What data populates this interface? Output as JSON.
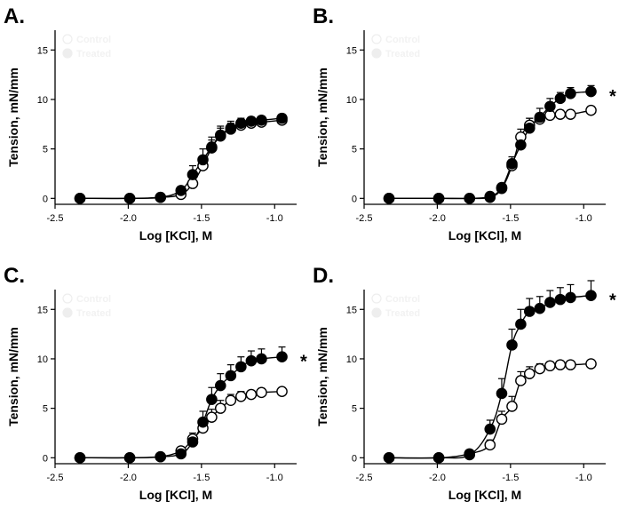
{
  "chart_data": [
    {
      "type": "line",
      "panel": "A.",
      "xlabel": "Log [KCl], M",
      "ylabel": "Tension, mN/mm",
      "xlim": [
        -2.5,
        -0.85
      ],
      "ylim": [
        -0.6,
        17
      ],
      "xticks": [
        -2.5,
        -2.0,
        -1.5,
        -1.0
      ],
      "xtick_labels": [
        "-2.5",
        "-2.0",
        "-1.5",
        "-1.0"
      ],
      "yticks": [
        0,
        5,
        10,
        15
      ],
      "ytick_labels": [
        "0",
        "5",
        "10",
        "15"
      ],
      "legend": [
        "Control",
        "Treated"
      ],
      "significance": "",
      "series": [
        {
          "name": "Control",
          "marker": "open",
          "x": [
            -2.33,
            -1.99,
            -1.78,
            -1.64,
            -1.56,
            -1.49,
            -1.43,
            -1.37,
            -1.3,
            -1.23,
            -1.16,
            -1.09,
            -0.95
          ],
          "y": [
            0,
            0,
            0.1,
            0.4,
            1.5,
            3.3,
            5.1,
            6.3,
            7.0,
            7.4,
            7.6,
            7.7,
            7.9
          ],
          "err": [
            0,
            0,
            0.1,
            0.2,
            0.5,
            0.7,
            0.8,
            0.8,
            0.6,
            0.5,
            0.4,
            0.4,
            0.4
          ]
        },
        {
          "name": "Treated",
          "marker": "filled",
          "x": [
            -2.33,
            -1.99,
            -1.78,
            -1.64,
            -1.56,
            -1.49,
            -1.43,
            -1.37,
            -1.3,
            -1.23,
            -1.16,
            -1.09,
            -0.95
          ],
          "y": [
            0,
            0,
            0.1,
            0.8,
            2.4,
            3.9,
            5.2,
            6.4,
            7.1,
            7.6,
            7.8,
            7.9,
            8.1
          ],
          "err": [
            0,
            0,
            0.2,
            0.4,
            0.9,
            1.1,
            1.0,
            0.9,
            0.7,
            0.5,
            0.4,
            0.4,
            0.4
          ]
        }
      ]
    },
    {
      "type": "line",
      "panel": "B.",
      "xlabel": "Log [KCl], M",
      "ylabel": "Tension, mN/mm",
      "xlim": [
        -2.5,
        -0.85
      ],
      "ylim": [
        -0.6,
        17
      ],
      "xticks": [
        -2.5,
        -2.0,
        -1.5,
        -1.0
      ],
      "xtick_labels": [
        "-2.5",
        "-2.0",
        "-1.5",
        "-1.0"
      ],
      "yticks": [
        0,
        5,
        10,
        15
      ],
      "ytick_labels": [
        "0",
        "5",
        "10",
        "15"
      ],
      "legend": [
        "Control",
        "Treated"
      ],
      "significance": "*",
      "series": [
        {
          "name": "Control",
          "marker": "open",
          "x": [
            -2.33,
            -1.99,
            -1.78,
            -1.64,
            -1.56,
            -1.49,
            -1.43,
            -1.37,
            -1.3,
            -1.23,
            -1.16,
            -1.09,
            -0.95
          ],
          "y": [
            0,
            0,
            0,
            0.1,
            1.0,
            3.3,
            6.2,
            7.4,
            8.0,
            8.4,
            8.5,
            8.5,
            8.9
          ],
          "err": [
            0,
            0,
            0,
            0.1,
            0.3,
            0.6,
            0.8,
            0.7,
            0.6,
            0.5,
            0.4,
            0.4,
            0.4
          ]
        },
        {
          "name": "Treated",
          "marker": "filled",
          "x": [
            -2.33,
            -1.99,
            -1.78,
            -1.64,
            -1.56,
            -1.49,
            -1.43,
            -1.37,
            -1.3,
            -1.23,
            -1.16,
            -1.09,
            -0.95
          ],
          "y": [
            0,
            0,
            0,
            0.2,
            1.1,
            3.5,
            5.4,
            7.1,
            8.2,
            9.3,
            10.1,
            10.6,
            10.8
          ],
          "err": [
            0,
            0,
            0,
            0.1,
            0.4,
            0.7,
            1.0,
            1.0,
            0.9,
            0.8,
            0.6,
            0.6,
            0.6
          ]
        }
      ]
    },
    {
      "type": "line",
      "panel": "C.",
      "xlabel": "Log [KCl], M",
      "ylabel": "Tension, mN/mm",
      "xlim": [
        -2.5,
        -0.85
      ],
      "ylim": [
        -0.6,
        17
      ],
      "xticks": [
        -2.5,
        -2.0,
        -1.5,
        -1.0
      ],
      "xtick_labels": [
        "-2.5",
        "-2.0",
        "-1.5",
        "-1.0"
      ],
      "yticks": [
        0,
        5,
        10,
        15
      ],
      "ytick_labels": [
        "0",
        "5",
        "10",
        "15"
      ],
      "legend": [
        "Control",
        "Treated"
      ],
      "significance": "*",
      "series": [
        {
          "name": "Control",
          "marker": "open",
          "x": [
            -2.33,
            -1.99,
            -1.78,
            -1.64,
            -1.56,
            -1.49,
            -1.43,
            -1.37,
            -1.3,
            -1.23,
            -1.16,
            -1.09,
            -0.95
          ],
          "y": [
            0,
            0,
            0.1,
            0.7,
            1.9,
            3.0,
            4.1,
            5.0,
            5.8,
            6.2,
            6.4,
            6.6,
            6.7
          ],
          "err": [
            0,
            0,
            0.1,
            0.3,
            0.6,
            0.8,
            0.8,
            0.8,
            0.6,
            0.5,
            0.4,
            0.4,
            0.3
          ]
        },
        {
          "name": "Treated",
          "marker": "filled",
          "x": [
            -2.33,
            -1.99,
            -1.78,
            -1.64,
            -1.56,
            -1.49,
            -1.43,
            -1.37,
            -1.3,
            -1.23,
            -1.16,
            -1.09,
            -0.95
          ],
          "y": [
            0,
            0,
            0.1,
            0.4,
            1.6,
            3.6,
            5.9,
            7.3,
            8.3,
            9.2,
            9.8,
            10.0,
            10.2
          ],
          "err": [
            0,
            0,
            0.1,
            0.3,
            0.7,
            1.1,
            1.2,
            1.2,
            1.1,
            1.0,
            1.0,
            1.0,
            1.0
          ]
        }
      ]
    },
    {
      "type": "line",
      "panel": "D.",
      "xlabel": "Log [KCl], M",
      "ylabel": "Tension, mN/mm",
      "xlim": [
        -2.5,
        -0.85
      ],
      "ylim": [
        -0.6,
        17
      ],
      "xticks": [
        -2.5,
        -2.0,
        -1.5,
        -1.0
      ],
      "xtick_labels": [
        "-2.5",
        "-2.0",
        "-1.5",
        "-1.0"
      ],
      "yticks": [
        0,
        5,
        10,
        15
      ],
      "ytick_labels": [
        "0",
        "5",
        "10",
        "15"
      ],
      "legend": [
        "Control",
        "Treated"
      ],
      "significance": "*",
      "series": [
        {
          "name": "Control",
          "marker": "open",
          "x": [
            -2.33,
            -1.99,
            -1.78,
            -1.64,
            -1.56,
            -1.49,
            -1.43,
            -1.37,
            -1.3,
            -1.23,
            -1.16,
            -1.09,
            -0.95
          ],
          "y": [
            0,
            0,
            0.4,
            1.3,
            3.9,
            5.2,
            7.8,
            8.5,
            9.0,
            9.3,
            9.4,
            9.4,
            9.5
          ],
          "err": [
            0,
            0,
            0.2,
            0.5,
            0.8,
            1.0,
            0.9,
            0.7,
            0.5,
            0.4,
            0.3,
            0.3,
            0.3
          ]
        },
        {
          "name": "Treated",
          "marker": "filled",
          "x": [
            -2.33,
            -1.99,
            -1.78,
            -1.64,
            -1.56,
            -1.49,
            -1.43,
            -1.37,
            -1.3,
            -1.23,
            -1.16,
            -1.09,
            -0.95
          ],
          "y": [
            0,
            0,
            0.3,
            2.9,
            6.5,
            11.4,
            13.5,
            14.8,
            15.1,
            15.7,
            16.0,
            16.2,
            16.4
          ],
          "err": [
            0,
            0,
            0.3,
            0.9,
            1.5,
            1.6,
            1.5,
            1.3,
            1.2,
            1.2,
            1.2,
            1.3,
            1.5
          ]
        }
      ]
    }
  ]
}
